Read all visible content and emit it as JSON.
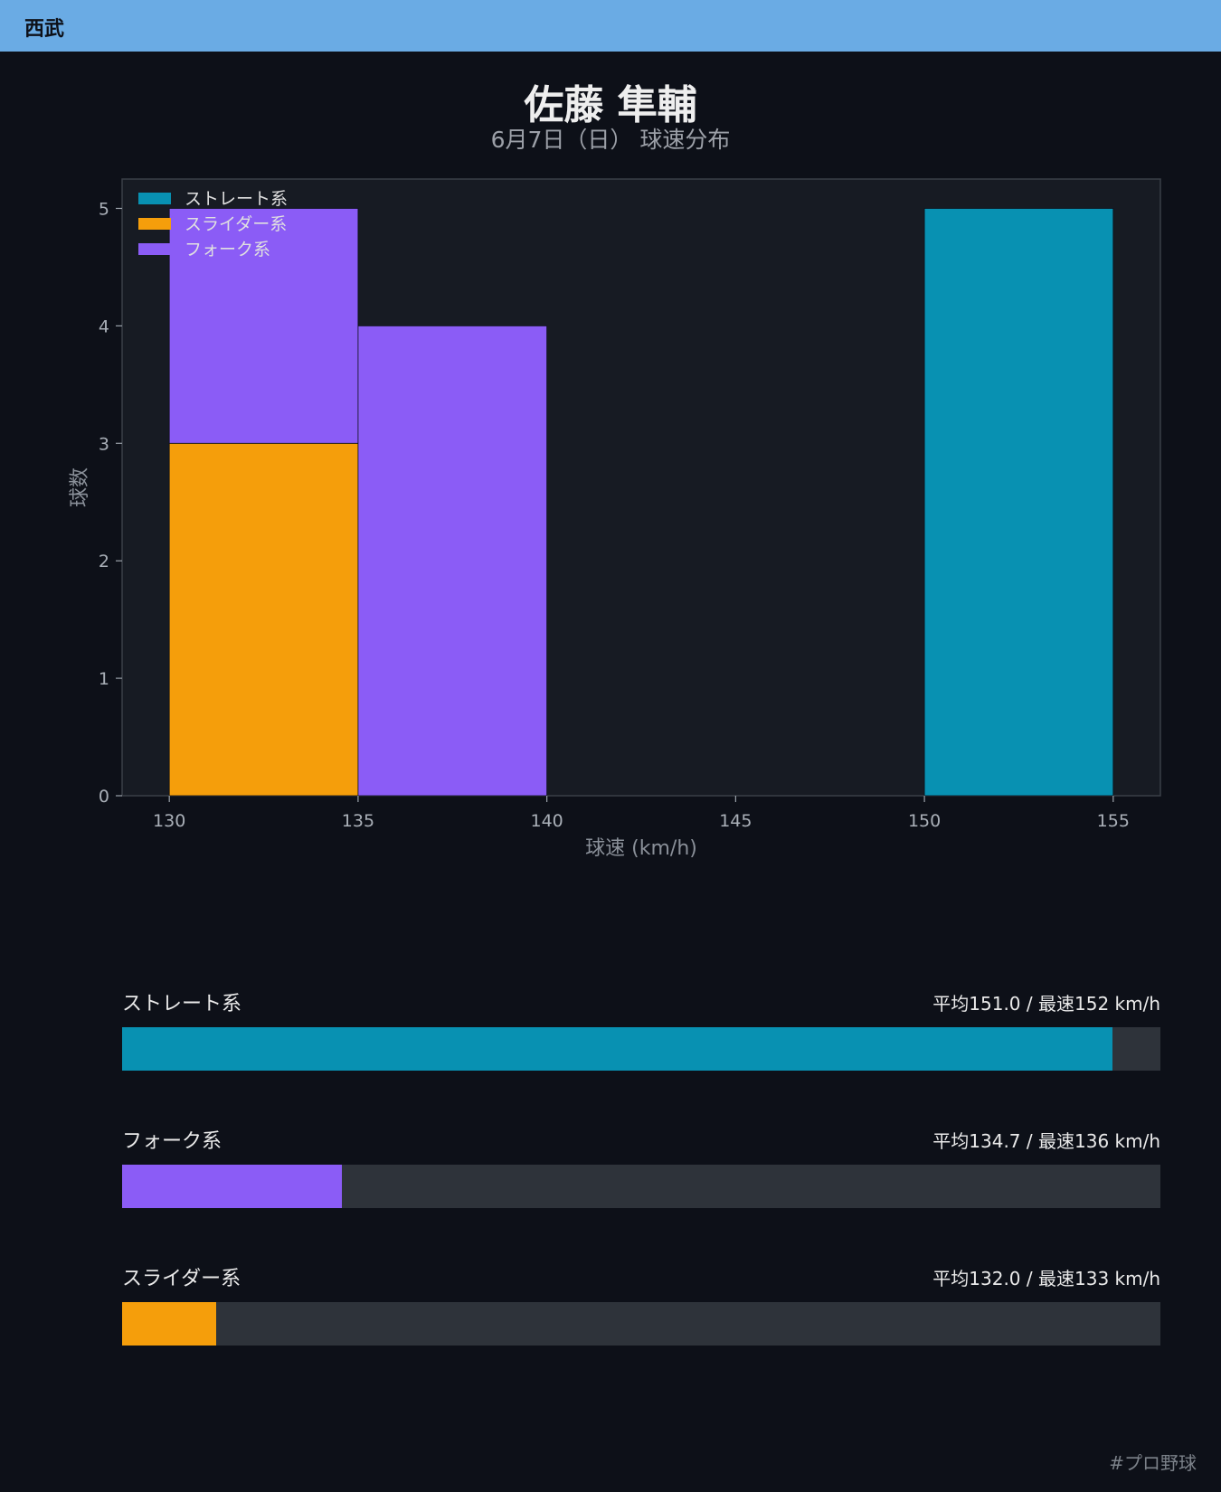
{
  "header": {
    "team": "西武"
  },
  "title": "佐藤 隼輔",
  "subtitle": "6月7日（日） 球速分布",
  "chart_data": {
    "type": "bar",
    "stacked": true,
    "xlabel": "球速 (km/h)",
    "ylabel": "球数",
    "xlim": [
      128.75,
      156.25
    ],
    "ylim": [
      0,
      5.25
    ],
    "xticks": [
      130,
      135,
      140,
      145,
      150,
      155
    ],
    "yticks": [
      0,
      1,
      2,
      3,
      4,
      5
    ],
    "bins": [
      [
        130,
        135
      ],
      [
        135,
        140
      ],
      [
        140,
        145
      ],
      [
        145,
        150
      ],
      [
        150,
        155
      ]
    ],
    "legend_position": "top-left",
    "series": [
      {
        "name": "ストレート系",
        "color": "#0891b2",
        "values": [
          0,
          0,
          0,
          0,
          5
        ]
      },
      {
        "name": "スライダー系",
        "color": "#f59e0b",
        "values": [
          3,
          0,
          0,
          0,
          0
        ]
      },
      {
        "name": "フォーク系",
        "color": "#8b5cf6",
        "values": [
          2,
          4,
          0,
          0,
          0
        ]
      }
    ]
  },
  "stats": [
    {
      "name": "ストレート系",
      "value_text": "平均151.0 / 最速152 km/h",
      "color": "#0891b2",
      "fill": 0.954
    },
    {
      "name": "フォーク系",
      "value_text": "平均134.7 / 最速136 km/h",
      "color": "#8b5cf6",
      "fill": 0.212
    },
    {
      "name": "スライダー系",
      "value_text": "平均132.0 / 最速133 km/h",
      "color": "#f59e0b",
      "fill": 0.091
    }
  ],
  "footer": {
    "hashtag": "#プロ野球"
  }
}
